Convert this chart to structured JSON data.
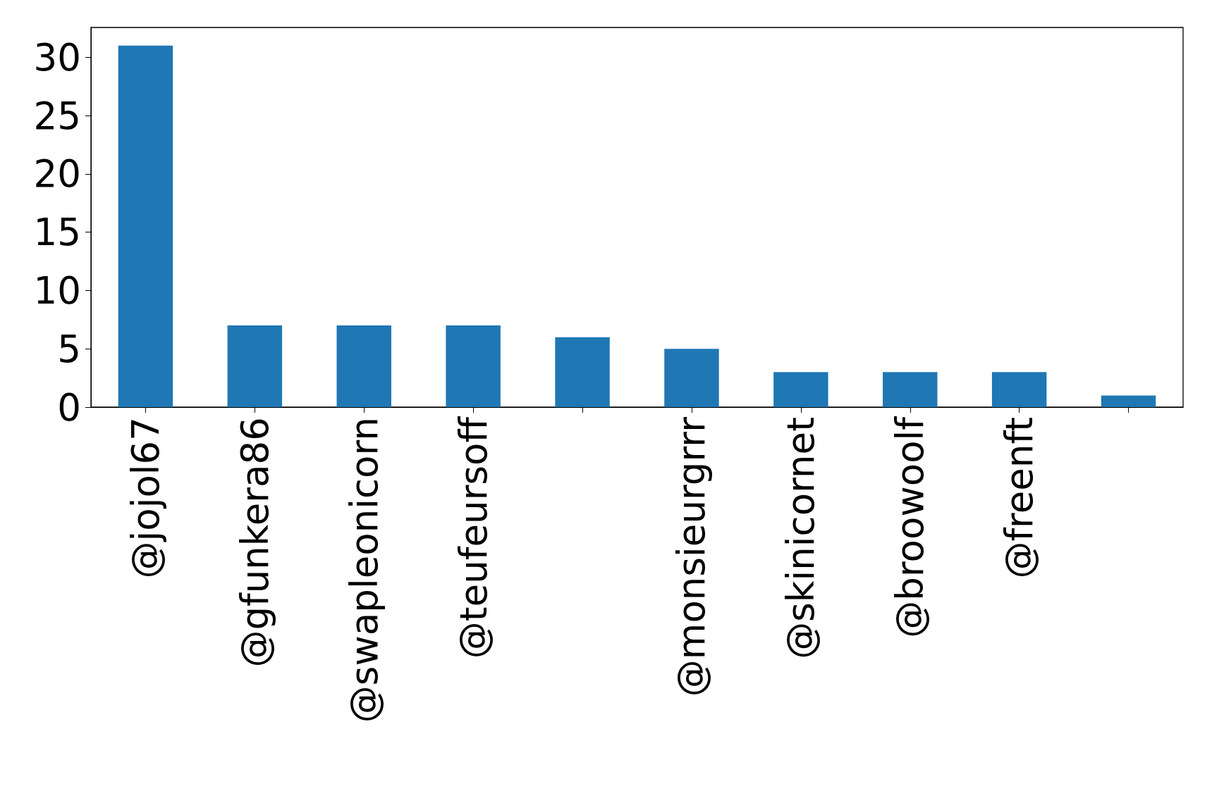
{
  "chart_data": {
    "type": "bar",
    "categories": [
      "@jojol67",
      "@gfunkera86",
      "@swapleonicorn",
      "@teufeursoff",
      null,
      "@monsieurgrrr",
      "@skinicornet",
      "@broowoolf",
      "@freenft",
      null
    ],
    "values": [
      31,
      7,
      7,
      7,
      6,
      5,
      3,
      3,
      3,
      1
    ],
    "color": "#1f77b4",
    "ylim": [
      0,
      32.55
    ],
    "yticks": [
      0,
      5,
      10,
      15,
      20,
      25,
      30
    ]
  }
}
